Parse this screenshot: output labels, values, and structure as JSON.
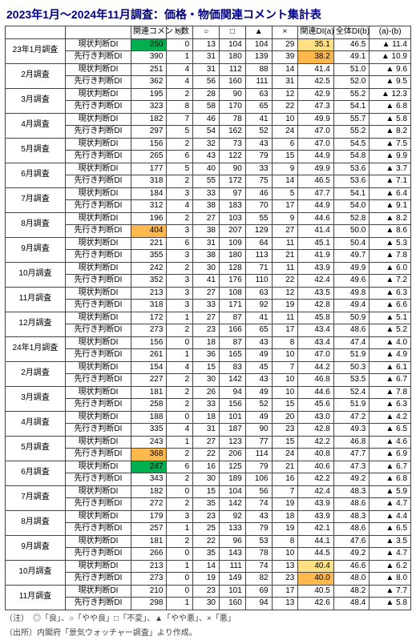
{
  "title": "2023年1月～2024年11月調査：価格・物価関連コメント集計表",
  "columns": [
    "",
    "",
    "関連コメント数",
    "◎",
    "○",
    "□",
    "▲",
    "×",
    "関連DI(a)",
    "全体DI(b)",
    "(a)-(b)"
  ],
  "highlight_colors": {
    "green": "#00b050",
    "orange": "#ffb84d",
    "yellow": "#ffe084"
  },
  "rows": [
    {
      "period": "23年1月調査",
      "type": "現状判断DI",
      "cnt": "250",
      "c1": "0",
      "c2": "13",
      "c3": "104",
      "c4": "104",
      "c5": "29",
      "a": "35.1",
      "b": "46.5",
      "d": "▲ 11.4",
      "hl_cnt": "green",
      "hl_a": "yellow"
    },
    {
      "period": "",
      "type": "先行き判断DI",
      "cnt": "390",
      "c1": "1",
      "c2": "31",
      "c3": "180",
      "c4": "139",
      "c5": "39",
      "a": "38.2",
      "b": "49.1",
      "d": "▲ 10.9",
      "hl_a": "orange"
    },
    {
      "period": "2月調査",
      "type": "現状判断DI",
      "cnt": "251",
      "c1": "4",
      "c2": "31",
      "c3": "112",
      "c4": "88",
      "c5": "14",
      "a": "41.4",
      "b": "51.0",
      "d": "▲ 9.6"
    },
    {
      "period": "",
      "type": "先行き判断DI",
      "cnt": "362",
      "c1": "4",
      "c2": "56",
      "c3": "160",
      "c4": "111",
      "c5": "31",
      "a": "42.5",
      "b": "52.0",
      "d": "▲ 9.5"
    },
    {
      "period": "3月調査",
      "type": "現状判断DI",
      "cnt": "195",
      "c1": "2",
      "c2": "28",
      "c3": "90",
      "c4": "63",
      "c5": "12",
      "a": "42.9",
      "b": "55.2",
      "d": "▲ 12.3"
    },
    {
      "period": "",
      "type": "先行き判断DI",
      "cnt": "323",
      "c1": "8",
      "c2": "58",
      "c3": "170",
      "c4": "65",
      "c5": "22",
      "a": "47.3",
      "b": "54.1",
      "d": "▲ 6.8"
    },
    {
      "period": "4月調査",
      "type": "現状判断DI",
      "cnt": "182",
      "c1": "7",
      "c2": "46",
      "c3": "78",
      "c4": "41",
      "c5": "10",
      "a": "49.9",
      "b": "55.7",
      "d": "▲ 5.8"
    },
    {
      "period": "",
      "type": "先行き判断DI",
      "cnt": "297",
      "c1": "5",
      "c2": "54",
      "c3": "162",
      "c4": "52",
      "c5": "24",
      "a": "47.0",
      "b": "55.2",
      "d": "▲ 8.2"
    },
    {
      "period": "5月調査",
      "type": "現状判断DI",
      "cnt": "156",
      "c1": "2",
      "c2": "32",
      "c3": "73",
      "c4": "43",
      "c5": "6",
      "a": "47.0",
      "b": "54.5",
      "d": "▲ 7.5"
    },
    {
      "period": "",
      "type": "先行き判断DI",
      "cnt": "265",
      "c1": "6",
      "c2": "43",
      "c3": "122",
      "c4": "79",
      "c5": "15",
      "a": "44.9",
      "b": "54.8",
      "d": "▲ 9.9"
    },
    {
      "period": "6月調査",
      "type": "現状判断DI",
      "cnt": "177",
      "c1": "5",
      "c2": "40",
      "c3": "90",
      "c4": "33",
      "c5": "9",
      "a": "49.9",
      "b": "53.6",
      "d": "▲ 3.7"
    },
    {
      "period": "",
      "type": "先行き判断DI",
      "cnt": "318",
      "c1": "2",
      "c2": "55",
      "c3": "172",
      "c4": "75",
      "c5": "14",
      "a": "46.5",
      "b": "53.6",
      "d": "▲ 7.1"
    },
    {
      "period": "7月調査",
      "type": "現状判断DI",
      "cnt": "184",
      "c1": "3",
      "c2": "33",
      "c3": "97",
      "c4": "46",
      "c5": "5",
      "a": "47.7",
      "b": "54.1",
      "d": "▲ 6.4"
    },
    {
      "period": "",
      "type": "先行き判断DI",
      "cnt": "312",
      "c1": "4",
      "c2": "38",
      "c3": "183",
      "c4": "70",
      "c5": "17",
      "a": "44.9",
      "b": "54.0",
      "d": "▲ 9.1"
    },
    {
      "period": "8月調査",
      "type": "現状判断DI",
      "cnt": "196",
      "c1": "2",
      "c2": "27",
      "c3": "103",
      "c4": "55",
      "c5": "9",
      "a": "44.6",
      "b": "52.8",
      "d": "▲ 8.2"
    },
    {
      "period": "",
      "type": "先行き判断DI",
      "cnt": "404",
      "c1": "3",
      "c2": "38",
      "c3": "207",
      "c4": "129",
      "c5": "27",
      "a": "41.4",
      "b": "50.0",
      "d": "▲ 8.6",
      "hl_cnt": "orange"
    },
    {
      "period": "9月調査",
      "type": "現状判断DI",
      "cnt": "221",
      "c1": "6",
      "c2": "31",
      "c3": "109",
      "c4": "64",
      "c5": "11",
      "a": "45.1",
      "b": "50.4",
      "d": "▲ 5.3"
    },
    {
      "period": "",
      "type": "先行き判断DI",
      "cnt": "355",
      "c1": "3",
      "c2": "38",
      "c3": "180",
      "c4": "113",
      "c5": "21",
      "a": "41.9",
      "b": "49.7",
      "d": "▲ 7.8"
    },
    {
      "period": "10月調査",
      "type": "現状判断DI",
      "cnt": "242",
      "c1": "2",
      "c2": "30",
      "c3": "128",
      "c4": "71",
      "c5": "11",
      "a": "43.9",
      "b": "49.9",
      "d": "▲ 6.0"
    },
    {
      "period": "",
      "type": "先行き判断DI",
      "cnt": "352",
      "c1": "3",
      "c2": "41",
      "c3": "176",
      "c4": "110",
      "c5": "22",
      "a": "42.4",
      "b": "49.6",
      "d": "▲ 7.2"
    },
    {
      "period": "11月調査",
      "type": "現状判断DI",
      "cnt": "213",
      "c1": "3",
      "c2": "27",
      "c3": "108",
      "c4": "63",
      "c5": "12",
      "a": "43.5",
      "b": "49.8",
      "d": "▲ 6.3"
    },
    {
      "period": "",
      "type": "先行き判断DI",
      "cnt": "318",
      "c1": "3",
      "c2": "33",
      "c3": "171",
      "c4": "92",
      "c5": "19",
      "a": "42.8",
      "b": "49.4",
      "d": "▲ 6.6"
    },
    {
      "period": "12月調査",
      "type": "現状判断DI",
      "cnt": "172",
      "c1": "1",
      "c2": "27",
      "c3": "87",
      "c4": "41",
      "c5": "11",
      "a": "45.8",
      "b": "50.9",
      "d": "▲ 5.1"
    },
    {
      "period": "",
      "type": "先行き判断DI",
      "cnt": "273",
      "c1": "2",
      "c2": "23",
      "c3": "166",
      "c4": "65",
      "c5": "17",
      "a": "43.4",
      "b": "48.6",
      "d": "▲ 5.2"
    },
    {
      "period": "24年1月調査",
      "type": "現状判断DI",
      "cnt": "156",
      "c1": "0",
      "c2": "18",
      "c3": "87",
      "c4": "43",
      "c5": "8",
      "a": "43.4",
      "b": "47.4",
      "d": "▲ 4.0"
    },
    {
      "period": "",
      "type": "先行き判断DI",
      "cnt": "261",
      "c1": "1",
      "c2": "36",
      "c3": "165",
      "c4": "49",
      "c5": "10",
      "a": "47.0",
      "b": "51.9",
      "d": "▲ 4.9"
    },
    {
      "period": "2月調査",
      "type": "現状判断DI",
      "cnt": "154",
      "c1": "4",
      "c2": "15",
      "c3": "83",
      "c4": "45",
      "c5": "7",
      "a": "44.2",
      "b": "50.3",
      "d": "▲ 6.1"
    },
    {
      "period": "",
      "type": "先行き判断DI",
      "cnt": "227",
      "c1": "2",
      "c2": "30",
      "c3": "142",
      "c4": "43",
      "c5": "10",
      "a": "46.8",
      "b": "53.5",
      "d": "▲ 6.7"
    },
    {
      "period": "3月調査",
      "type": "現状判断DI",
      "cnt": "181",
      "c1": "2",
      "c2": "26",
      "c3": "94",
      "c4": "49",
      "c5": "10",
      "a": "44.6",
      "b": "52.4",
      "d": "▲ 7.8"
    },
    {
      "period": "",
      "type": "先行き判断DI",
      "cnt": "258",
      "c1": "2",
      "c2": "33",
      "c3": "156",
      "c4": "52",
      "c5": "15",
      "a": "45.6",
      "b": "51.9",
      "d": "▲ 6.3"
    },
    {
      "period": "4月調査",
      "type": "現状判断DI",
      "cnt": "188",
      "c1": "0",
      "c2": "18",
      "c3": "101",
      "c4": "49",
      "c5": "20",
      "a": "43.0",
      "b": "47.2",
      "d": "▲ 4.2"
    },
    {
      "period": "",
      "type": "先行き判断DI",
      "cnt": "335",
      "c1": "4",
      "c2": "31",
      "c3": "187",
      "c4": "90",
      "c5": "23",
      "a": "42.8",
      "b": "49.3",
      "d": "▲ 6.5"
    },
    {
      "period": "5月調査",
      "type": "現状判断DI",
      "cnt": "243",
      "c1": "1",
      "c2": "27",
      "c3": "123",
      "c4": "77",
      "c5": "15",
      "a": "42.2",
      "b": "46.8",
      "d": "▲ 4.6"
    },
    {
      "period": "",
      "type": "先行き判断DI",
      "cnt": "368",
      "c1": "2",
      "c2": "22",
      "c3": "206",
      "c4": "114",
      "c5": "24",
      "a": "40.8",
      "b": "47.7",
      "d": "▲ 6.9",
      "hl_cnt": "orange"
    },
    {
      "period": "6月調査",
      "type": "現状判断DI",
      "cnt": "247",
      "c1": "6",
      "c2": "16",
      "c3": "125",
      "c4": "79",
      "c5": "21",
      "a": "40.6",
      "b": "47.3",
      "d": "▲ 6.7",
      "hl_cnt": "green"
    },
    {
      "period": "",
      "type": "先行き判断DI",
      "cnt": "343",
      "c1": "2",
      "c2": "30",
      "c3": "189",
      "c4": "106",
      "c5": "16",
      "a": "42.2",
      "b": "49.2",
      "d": "▲ 6.8"
    },
    {
      "period": "7月調査",
      "type": "現状判断DI",
      "cnt": "182",
      "c1": "0",
      "c2": "15",
      "c3": "104",
      "c4": "56",
      "c5": "7",
      "a": "42.4",
      "b": "48.3",
      "d": "▲ 5.9"
    },
    {
      "period": "",
      "type": "先行き判断DI",
      "cnt": "272",
      "c1": "2",
      "c2": "35",
      "c3": "142",
      "c4": "74",
      "c5": "19",
      "a": "43.9",
      "b": "48.6",
      "d": "▲ 4.7"
    },
    {
      "period": "8月調査",
      "type": "現状判断DI",
      "cnt": "179",
      "c1": "3",
      "c2": "23",
      "c3": "92",
      "c4": "43",
      "c5": "18",
      "a": "43.9",
      "b": "48.3",
      "d": "▲ 4.4"
    },
    {
      "period": "",
      "type": "先行き判断DI",
      "cnt": "257",
      "c1": "1",
      "c2": "25",
      "c3": "133",
      "c4": "79",
      "c5": "19",
      "a": "42.1",
      "b": "48.6",
      "d": "▲ 6.5"
    },
    {
      "period": "9月調査",
      "type": "現状判断DI",
      "cnt": "181",
      "c1": "2",
      "c2": "22",
      "c3": "96",
      "c4": "53",
      "c5": "8",
      "a": "44.1",
      "b": "47.6",
      "d": "▲ 3.5"
    },
    {
      "period": "",
      "type": "先行き判断DI",
      "cnt": "266",
      "c1": "0",
      "c2": "35",
      "c3": "143",
      "c4": "78",
      "c5": "10",
      "a": "44.5",
      "b": "49.2",
      "d": "▲ 4.7"
    },
    {
      "period": "10月調査",
      "type": "現状判断DI",
      "cnt": "213",
      "c1": "1",
      "c2": "14",
      "c3": "111",
      "c4": "74",
      "c5": "13",
      "a": "40.4",
      "b": "46.6",
      "d": "▲ 6.2",
      "hl_a": "yellow"
    },
    {
      "period": "",
      "type": "先行き判断DI",
      "cnt": "273",
      "c1": "0",
      "c2": "19",
      "c3": "149",
      "c4": "82",
      "c5": "23",
      "a": "40.0",
      "b": "48.0",
      "d": "▲ 8.0",
      "hl_a": "orange"
    },
    {
      "period": "11月調査",
      "type": "現状判断DI",
      "cnt": "210",
      "c1": "0",
      "c2": "23",
      "c3": "101",
      "c4": "69",
      "c5": "17",
      "a": "40.5",
      "b": "48.2",
      "d": "▲ 7.7"
    },
    {
      "period": "",
      "type": "先行き判断DI",
      "cnt": "298",
      "c1": "1",
      "c2": "30",
      "c3": "160",
      "c4": "94",
      "c5": "13",
      "a": "42.6",
      "b": "48.4",
      "d": "▲ 5.8"
    }
  ],
  "footnote1": "（注）　◎「良」、○「やや良」□「不変」、▲「やや悪」、×「悪」",
  "footnote2": "（出所）内閣府「景気ウォッチャー調査」より作成。"
}
